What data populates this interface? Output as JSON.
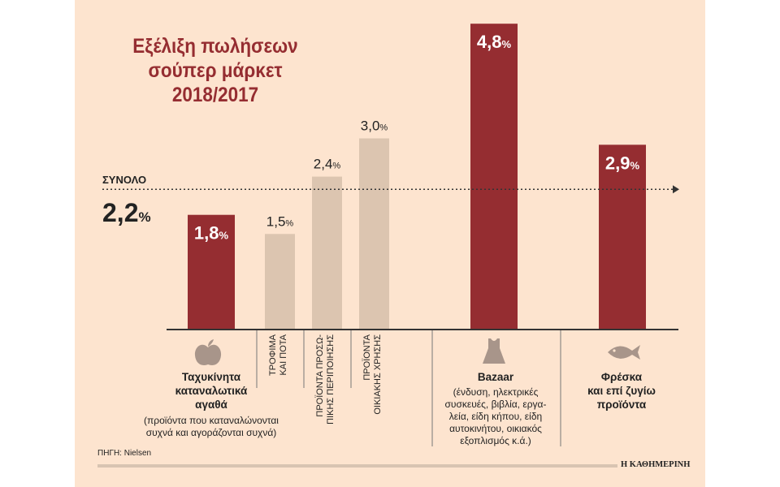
{
  "title": [
    "Εξέλιξη πωλήσεων",
    "σούπερ μάρκετ",
    "2018/2017"
  ],
  "total": {
    "label": "ΣΥΝΟΛΟ",
    "value": 2.2,
    "text": "2,2",
    "unit": "%"
  },
  "colors": {
    "accent": "#952d31",
    "secondary": "#dcc5b0",
    "background": "#fde4cf",
    "icon": "#a8958a"
  },
  "chart_data": {
    "type": "bar",
    "categories": [
      "Ταχυκίνητα καταναλωτικά αγαθά",
      "ΤΡΟΦΙΜΑ ΚΑΙ ΠΟΤΑ",
      "ΠΡΟΪΟΝΤΑ ΠΡΟΣΩΠΙΚΗΣ ΠΕΡΙΠΟΙΗΣΗΣ",
      "ΠΡΟΪΟΝΤΑ ΟΙΚΙΑΚΗΣ ΧΡΗΣΗΣ",
      "Bazaar",
      "Φρέσκα και επί ζυγίω προϊόντα"
    ],
    "values": [
      1.8,
      1.5,
      2.4,
      3.0,
      4.8,
      2.9
    ],
    "value_labels": [
      "1,8",
      "1,5",
      "2,4",
      "3,0",
      "4,8",
      "2,9"
    ],
    "unit": "%",
    "reference_line": 2.2,
    "ylim": [
      0,
      4.8
    ]
  },
  "groups": [
    {
      "icon": "apple-icon",
      "name": [
        "Ταχυκίνητα",
        "καταναλωτικά",
        "αγαθά"
      ],
      "note": [
        "(προϊόντα που καταναλώνονται",
        "συχνά και αγοράζονται συχνά)"
      ]
    },
    {
      "sub": [
        [
          "ΤΡΟΦΙΜΑ",
          "ΚΑΙ ΠΟΤΑ"
        ],
        [
          "ΠΡΟΪΟΝΤΑ ΠΡΟΣΩ-",
          "ΠΙΚΗΣ ΠΕΡΙΠΟΙΗΣΗΣ"
        ],
        [
          "ΠΡΟΪΟΝΤΑ",
          "ΟΙΚΙΑΚΗΣ ΧΡΗΣΗΣ"
        ]
      ]
    },
    {
      "icon": "dress-icon",
      "name": [
        "Bazaar"
      ],
      "note": [
        "(ένδυση, ηλεκτρικές",
        "συσκευές, βιβλία, εργα-",
        "λεία, είδη κήπου, είδη",
        "αυτοκινήτου, οικιακός",
        "εξοπλισμός κ.ά.)"
      ]
    },
    {
      "icon": "fish-icon",
      "name": [
        "Φρέσκα",
        "και επί ζυγίω",
        "προϊόντα"
      ]
    }
  ],
  "source": "ΠΗΓΗ: Nielsen",
  "brand": "Η ΚΑΘΗΜΕΡΙΝΗ"
}
